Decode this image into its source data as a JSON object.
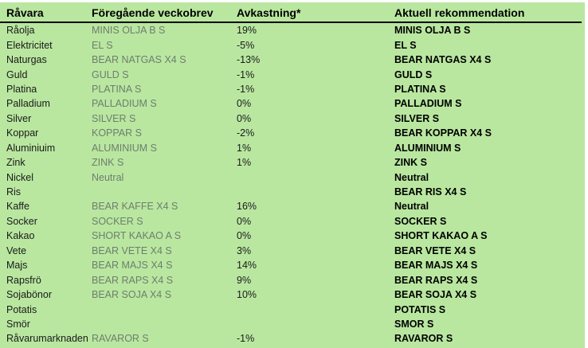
{
  "colors": {
    "table_background": "#b9e7a0",
    "previous_column_text": "#6f7d6e",
    "primary_text": "#000000",
    "header_rule": "#000000"
  },
  "table": {
    "headers": [
      "Råvara",
      "Föregående veckobrev",
      "Avkastning*",
      "Aktuell rekommendation"
    ],
    "rows": [
      {
        "commodity": "Råolja",
        "previous": "MINIS OLJA B S",
        "return": "19%",
        "recommendation": "MINIS OLJA B S"
      },
      {
        "commodity": "Elektricitet",
        "previous": "EL S",
        "return": "-5%",
        "recommendation": "EL S"
      },
      {
        "commodity": "Naturgas",
        "previous": "BEAR NATGAS X4 S",
        "return": "-13%",
        "recommendation": "BEAR NATGAS X4 S"
      },
      {
        "commodity": "Guld",
        "previous": "GULD S",
        "return": "-1%",
        "recommendation": "GULD S"
      },
      {
        "commodity": "Platina",
        "previous": "PLATINA S",
        "return": "-1%",
        "recommendation": "PLATINA S"
      },
      {
        "commodity": "Palladium",
        "previous": "PALLADIUM S",
        "return": "0%",
        "recommendation": "PALLADIUM S"
      },
      {
        "commodity": "Silver",
        "previous": "SILVER S",
        "return": "0%",
        "recommendation": "SILVER S"
      },
      {
        "commodity": "Koppar",
        "previous": "KOPPAR S",
        "return": "-2%",
        "recommendation": "BEAR KOPPAR X4 S"
      },
      {
        "commodity": "Aluminiuim",
        "previous": "ALUMINIUM S",
        "return": "1%",
        "recommendation": "ALUMINIUM S"
      },
      {
        "commodity": "Zink",
        "previous": "ZINK S",
        "return": "1%",
        "recommendation": "ZINK S"
      },
      {
        "commodity": "Nickel",
        "previous": "Neutral",
        "return": "",
        "recommendation": "Neutral"
      },
      {
        "commodity": "Ris",
        "previous": "",
        "return": "",
        "recommendation": "BEAR RIS X4 S"
      },
      {
        "commodity": "Kaffe",
        "previous": "BEAR KAFFE X4 S",
        "return": "16%",
        "recommendation": "Neutral"
      },
      {
        "commodity": "Socker",
        "previous": "SOCKER S",
        "return": "0%",
        "recommendation": "SOCKER S"
      },
      {
        "commodity": "Kakao",
        "previous": "SHORT KAKAO A S",
        "return": "0%",
        "recommendation": "SHORT KAKAO A S"
      },
      {
        "commodity": "Vete",
        "previous": "BEAR VETE X4 S",
        "return": "3%",
        "recommendation": "BEAR VETE X4 S"
      },
      {
        "commodity": "Majs",
        "previous": "BEAR MAJS X4 S",
        "return": "14%",
        "recommendation": "BEAR MAJS X4 S"
      },
      {
        "commodity": "Rapsfrö",
        "previous": "BEAR RAPS X4 S",
        "return": "9%",
        "recommendation": "BEAR RAPS X4 S"
      },
      {
        "commodity": "Sojabönor",
        "previous": "BEAR SOJA X4 S",
        "return": "10%",
        "recommendation": "BEAR SOJA X4 S"
      },
      {
        "commodity": "Potatis",
        "previous": "",
        "return": "",
        "recommendation": "POTATIS S"
      },
      {
        "commodity": "Smör",
        "previous": "",
        "return": "",
        "recommendation": "SMOR S"
      },
      {
        "commodity": "Råvarumarknaden",
        "previous": "RAVAROR S",
        "return": "-1%",
        "recommendation": "RAVAROR S"
      }
    ]
  }
}
